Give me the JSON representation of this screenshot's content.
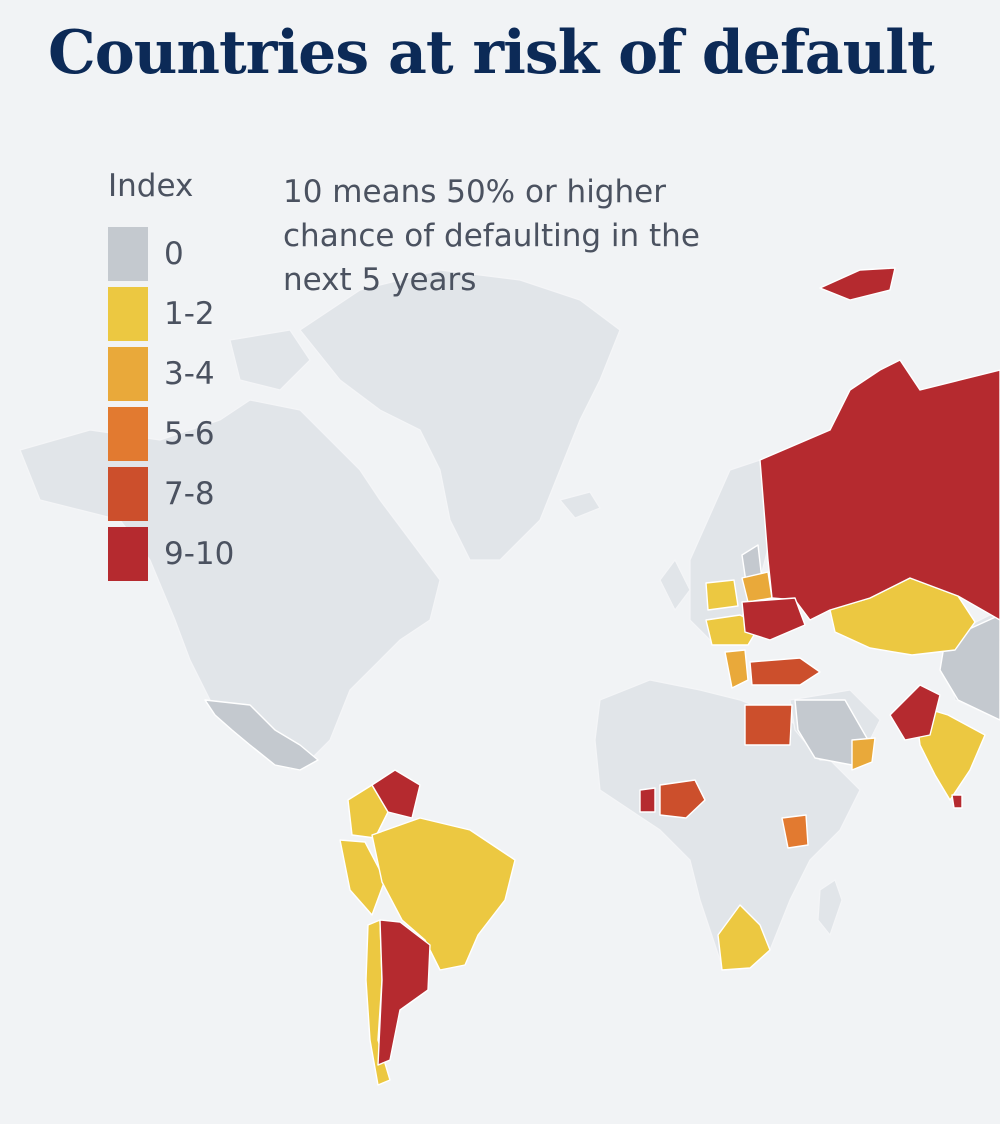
{
  "title": "Countries at risk of default",
  "legend": {
    "title": "Index",
    "categories": [
      {
        "label": "0",
        "color": "#c4c9cf"
      },
      {
        "label": "1-2",
        "color": "#ecc841"
      },
      {
        "label": "3-4",
        "color": "#e9a93a"
      },
      {
        "label": "5-6",
        "color": "#e27a30"
      },
      {
        "label": "7-8",
        "color": "#cc4f2c"
      },
      {
        "label": "9-10",
        "color": "#b52a2f"
      }
    ]
  },
  "note": "10 means 50% or higher chance of defaulting in the next 5 years",
  "colors": {
    "background": "#f1f3f5",
    "land": "#e1e5e9",
    "title": "#0c2a57",
    "text": "#4b5260"
  }
}
